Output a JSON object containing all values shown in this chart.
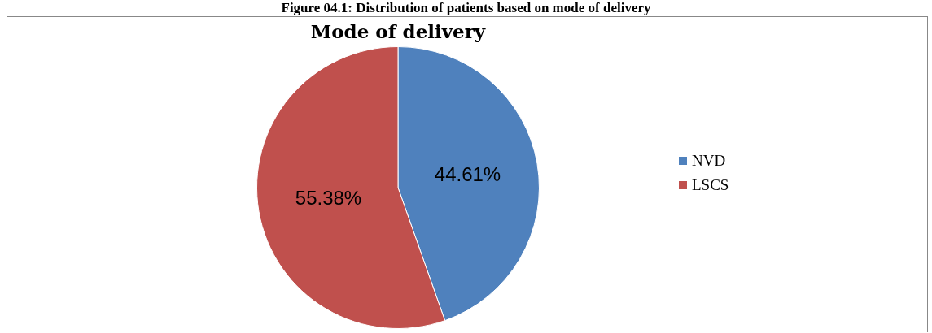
{
  "chart_data": {
    "type": "pie",
    "title": "Figure 04.1: Distribution of patients based on mode of delivery",
    "subtitle": "Mode of delivery",
    "categories": [
      "NVD",
      "LSCS"
    ],
    "values": [
      44.61,
      55.38
    ],
    "colors": [
      "#4f81bd",
      "#c0504d"
    ],
    "value_labels": [
      "44.61%",
      "55.38%"
    ],
    "legend": "right"
  }
}
